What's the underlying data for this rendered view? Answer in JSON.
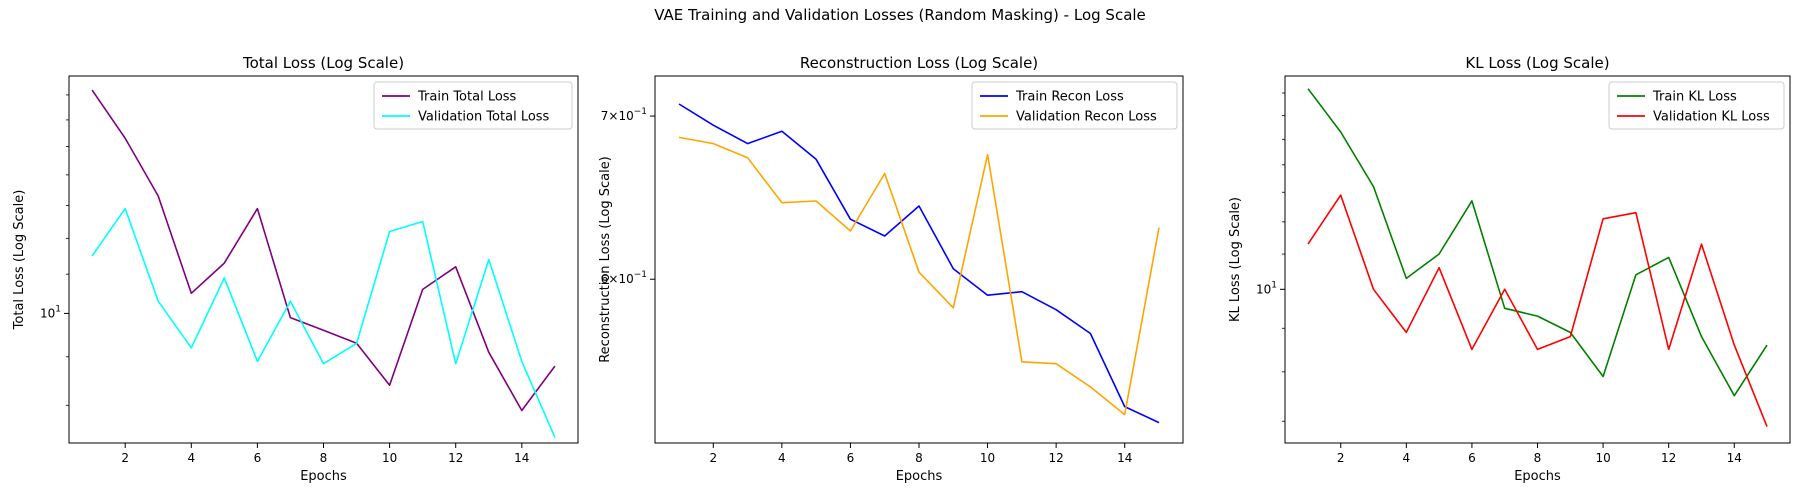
{
  "suptitle": "VAE Training and Validation Losses (Random Masking) - Log Scale",
  "chart_data": [
    {
      "type": "line",
      "title": "Total Loss (Log Scale)",
      "xlabel": "Epochs",
      "ylabel": "Total Loss (Log Scale)",
      "yscale": "log",
      "xlim": [
        0.3,
        15.7
      ],
      "ylim": [
        7.3,
        17.8
      ],
      "xticks": [
        2,
        4,
        6,
        8,
        10,
        12,
        14
      ],
      "yticks_major": [
        {
          "value": 10,
          "base": "10",
          "exp": "1"
        }
      ],
      "yticks_minor": [
        8,
        9,
        11,
        12,
        13,
        14,
        15,
        16,
        17
      ],
      "legend_position": "upper right",
      "x": [
        1,
        2,
        3,
        4,
        5,
        6,
        7,
        8,
        9,
        10,
        11,
        12,
        13,
        14,
        15
      ],
      "series": [
        {
          "name": "Train Total Loss",
          "color": "#800080",
          "values": [
            17.2,
            15.3,
            13.3,
            10.5,
            11.3,
            12.9,
            9.9,
            9.6,
            9.3,
            8.4,
            10.6,
            11.2,
            9.1,
            7.9,
            8.8
          ]
        },
        {
          "name": "Validation Total Loss",
          "color": "#00FFFF",
          "values": [
            11.5,
            12.9,
            10.3,
            9.2,
            10.9,
            8.9,
            10.3,
            8.85,
            9.3,
            12.2,
            12.5,
            8.85,
            11.4,
            8.9,
            7.4
          ]
        }
      ]
    },
    {
      "type": "line",
      "title": "Reconstruction Loss (Log Scale)",
      "xlabel": "Epochs",
      "ylabel": "Reconstruction Loss (Log Scale)",
      "yscale": "log",
      "xlim": [
        0.3,
        15.7
      ],
      "ylim": [
        0.514,
        0.727
      ],
      "xticks": [
        2,
        4,
        6,
        8,
        10,
        12,
        14
      ],
      "yticks_major": [
        {
          "value": 0.6,
          "mant": "6",
          "base": "10",
          "exp": "−1"
        },
        {
          "value": 0.7,
          "mant": "7",
          "base": "10",
          "exp": "−1"
        }
      ],
      "yticks_minor": [],
      "legend_position": "upper right",
      "x": [
        1,
        2,
        3,
        4,
        5,
        6,
        7,
        8,
        9,
        10,
        11,
        12,
        13,
        14,
        15
      ],
      "series": [
        {
          "name": "Train Recon Loss",
          "color": "#0000FF",
          "values": [
            0.708,
            0.694,
            0.682,
            0.69,
            0.672,
            0.635,
            0.625,
            0.643,
            0.606,
            0.591,
            0.593,
            0.583,
            0.57,
            0.532,
            0.524
          ]
        },
        {
          "name": "Validation Recon Loss",
          "color": "#FFA500",
          "values": [
            0.686,
            0.682,
            0.673,
            0.645,
            0.646,
            0.628,
            0.663,
            0.604,
            0.584,
            0.675,
            0.555,
            0.554,
            0.542,
            0.528,
            0.63
          ]
        }
      ]
    },
    {
      "type": "line",
      "title": "KL Loss (Log Scale)",
      "xlabel": "Epochs",
      "ylabel": "KL Loss (Log Scale)",
      "yscale": "log",
      "xlim": [
        0.3,
        15.7
      ],
      "ylim": [
        6.6,
        17.8
      ],
      "xticks": [
        2,
        4,
        6,
        8,
        10,
        12,
        14
      ],
      "yticks_major": [
        {
          "value": 10,
          "base": "10",
          "exp": "1"
        }
      ],
      "yticks_minor": [
        7,
        8,
        9,
        11,
        12,
        13,
        14,
        15,
        16,
        17
      ],
      "legend_position": "upper right",
      "x": [
        1,
        2,
        3,
        4,
        5,
        6,
        7,
        8,
        9,
        10,
        11,
        12,
        13,
        14,
        15
      ],
      "series": [
        {
          "name": "Train KL Loss",
          "color": "#008000",
          "values": [
            17.2,
            15.3,
            13.2,
            10.3,
            11.0,
            12.7,
            9.5,
            9.3,
            8.9,
            7.9,
            10.4,
            10.9,
            8.8,
            7.5,
            8.6
          ]
        },
        {
          "name": "Validation KL Loss",
          "color": "#FF0000",
          "values": [
            11.3,
            12.9,
            10.0,
            8.9,
            10.6,
            8.5,
            10.0,
            8.5,
            8.8,
            12.1,
            12.3,
            8.5,
            11.3,
            8.6,
            6.9
          ]
        }
      ]
    }
  ]
}
